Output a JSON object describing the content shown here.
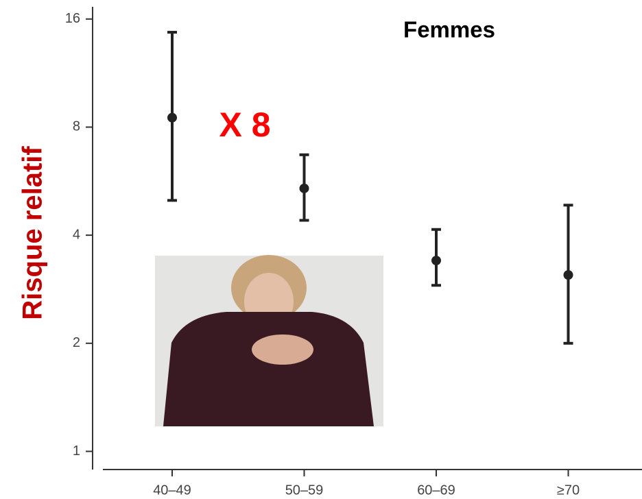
{
  "chart_data": {
    "type": "errorbar",
    "title": "Femmes",
    "annotation": "X 8",
    "y_label": "Risque relatif",
    "categories": [
      "40–49",
      "50–59",
      "60–69",
      "≥70"
    ],
    "values": [
      8.5,
      5.4,
      3.4,
      3.1
    ],
    "ci_low": [
      5.0,
      4.4,
      2.9,
      2.0
    ],
    "ci_high": [
      14.7,
      6.7,
      4.15,
      4.85
    ],
    "color": "#222222",
    "ylim": [
      0.89,
      17.3
    ],
    "yticks": [
      1,
      2,
      4,
      8,
      16
    ],
    "log_scale_y": true,
    "grid": false
  }
}
